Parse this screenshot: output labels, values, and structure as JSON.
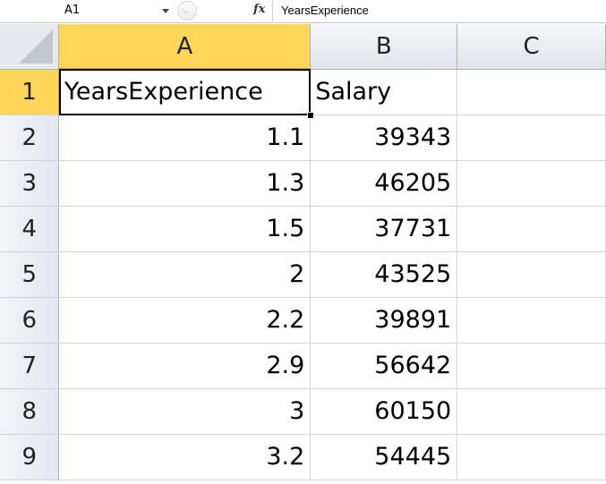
{
  "formula_bar": {
    "name_box": "A1",
    "fx_label": "fx",
    "formula": "YearsExperience"
  },
  "columns": [
    "A",
    "B",
    "C"
  ],
  "rows": [
    {
      "num": "1",
      "a": "YearsExperience",
      "b": "Salary",
      "c": ""
    },
    {
      "num": "2",
      "a": "1.1",
      "b": "39343",
      "c": ""
    },
    {
      "num": "3",
      "a": "1.3",
      "b": "46205",
      "c": ""
    },
    {
      "num": "4",
      "a": "1.5",
      "b": "37731",
      "c": ""
    },
    {
      "num": "5",
      "a": "2",
      "b": "43525",
      "c": ""
    },
    {
      "num": "6",
      "a": "2.2",
      "b": "39891",
      "c": ""
    },
    {
      "num": "7",
      "a": "2.9",
      "b": "56642",
      "c": ""
    },
    {
      "num": "8",
      "a": "3",
      "b": "60150",
      "c": ""
    },
    {
      "num": "9",
      "a": "3.2",
      "b": "54445",
      "c": ""
    }
  ],
  "colors": {
    "active_header": "#ffd55a",
    "header_bg": "#e4e8ed",
    "gridline": "#d4d4d4"
  }
}
